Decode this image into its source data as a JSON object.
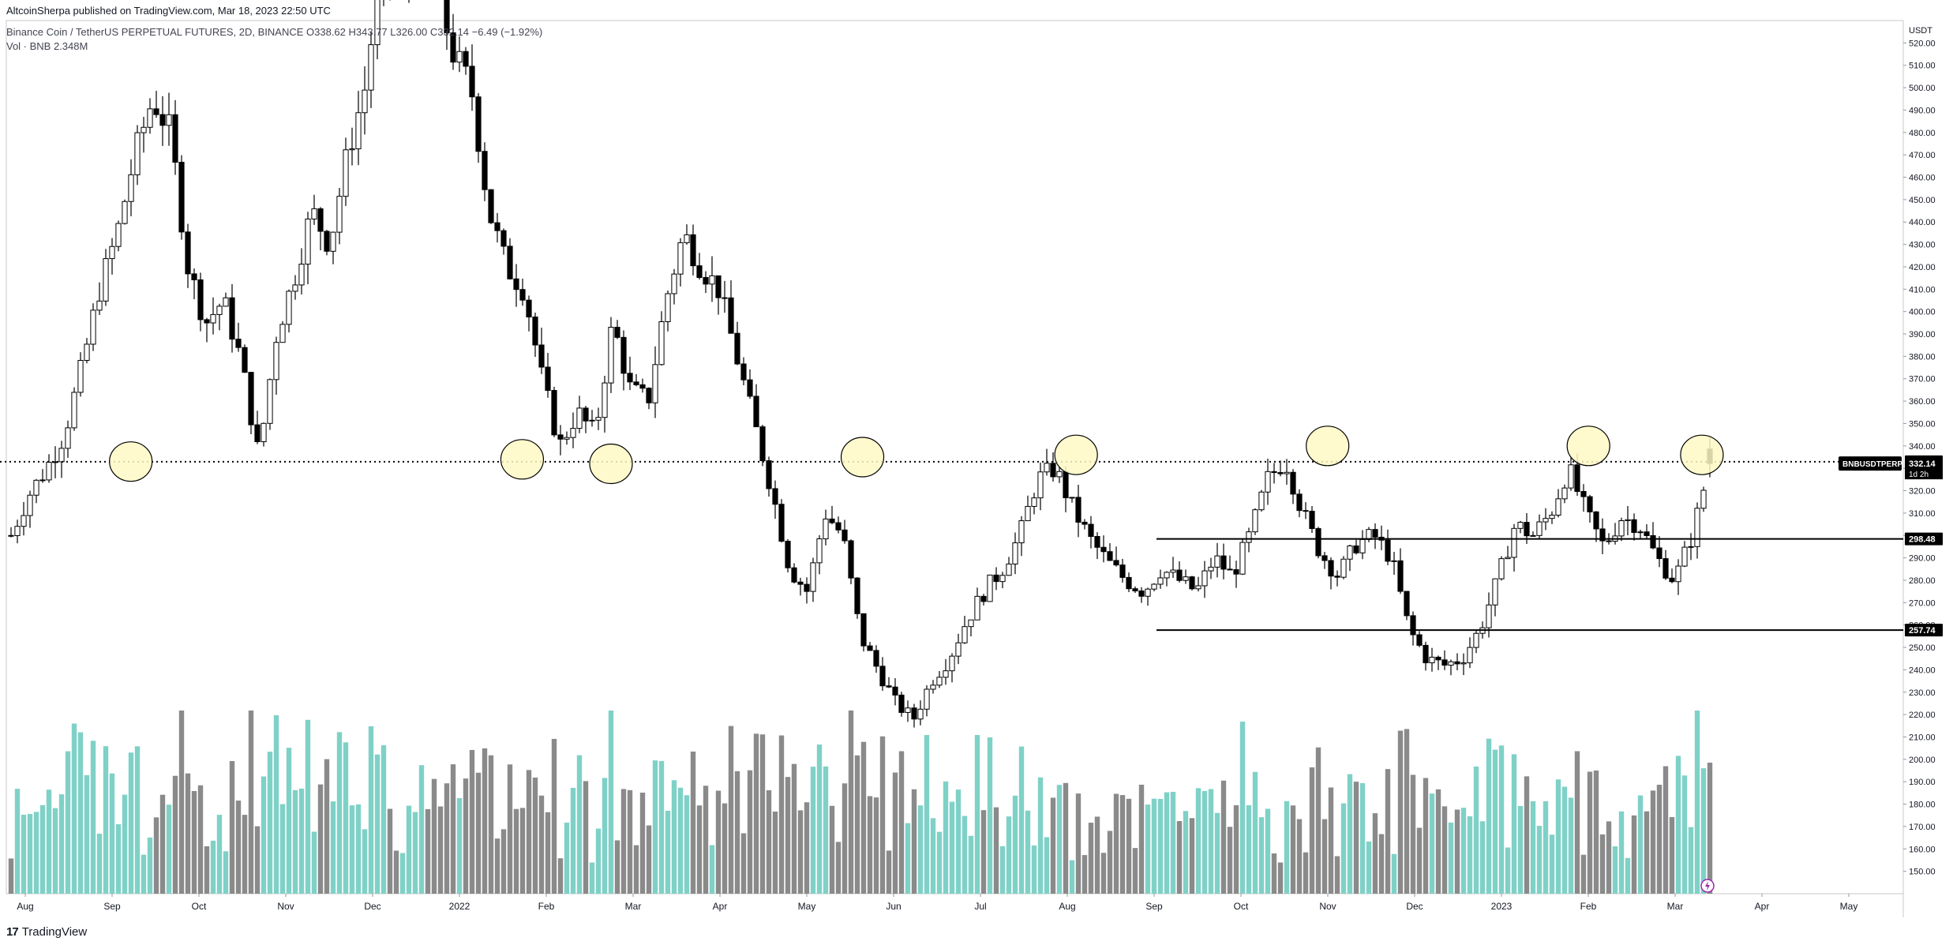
{
  "header": {
    "publisher": "AltcoinSherpa published on TradingView.com, Mar 18, 2023 22:50 UTC",
    "symbol_line": "Binance Coin / TetherUS PERPETUAL FUTURES, 2D, BINANCE  O338.62  H343.77  L326.00  C332.14  −6.49 (−1.92%)",
    "volume_line": "Vol · BNB  2.348M"
  },
  "brand": {
    "mark": "17",
    "name": "TradingView"
  },
  "colors": {
    "up_candle": "#ffffff",
    "down_candle": "#000000",
    "wick": "#000000",
    "vol_up": "#7fd1c7",
    "vol_down": "#8a8a8a",
    "highlight": "#fff9c4",
    "line": "#000000"
  },
  "chart_data": {
    "type": "candlestick",
    "timeframe": "2D",
    "price_axis": {
      "unit": "USDT",
      "min": 140,
      "max": 530,
      "ticks": [
        520,
        510,
        500,
        490,
        480,
        470,
        460,
        450,
        440,
        430,
        420,
        410,
        400,
        390,
        380,
        370,
        360,
        350,
        340,
        330,
        320,
        310,
        300,
        290,
        280,
        270,
        260,
        250,
        240,
        230,
        220,
        210,
        200,
        190,
        180,
        170,
        160,
        150
      ]
    },
    "time_axis": {
      "labels": [
        "Aug",
        "Sep",
        "Oct",
        "Nov",
        "Dec",
        "2022",
        "Feb",
        "Mar",
        "Apr",
        "May",
        "Jun",
        "Jul",
        "Aug",
        "Sep",
        "Oct",
        "Nov",
        "Dec",
        "2023",
        "Feb",
        "Mar",
        "Apr",
        "May"
      ]
    },
    "price_path": [
      300,
      318,
      330,
      345,
      375,
      410,
      435,
      470,
      495,
      480,
      420,
      395,
      405,
      378,
      335,
      390,
      415,
      445,
      430,
      470,
      500,
      560,
      540,
      560,
      545,
      515,
      500,
      445,
      420,
      410,
      370,
      340,
      355,
      345,
      395,
      365,
      360,
      405,
      435,
      420,
      410,
      380,
      350,
      320,
      285,
      275,
      310,
      300,
      255,
      240,
      225,
      218,
      235,
      245,
      262,
      275,
      285,
      300,
      325,
      330,
      312,
      298,
      288,
      280,
      275,
      285,
      280,
      275,
      290,
      282,
      300,
      325,
      334,
      310,
      292,
      282,
      296,
      300,
      290,
      258,
      245,
      242,
      245,
      258,
      280,
      305,
      300,
      310,
      330,
      310,
      295,
      308,
      305,
      290,
      280,
      300,
      332
    ],
    "candle_count": 270,
    "volume_range": [
      0,
      9000000
    ],
    "levels": [
      {
        "name": "dotted-resistance",
        "price": 332.95,
        "style": "dotted",
        "label": "332.95"
      },
      {
        "name": "range-top",
        "price": 298.48,
        "style": "solid",
        "label": "298.48"
      },
      {
        "name": "range-bottom",
        "price": 257.74,
        "style": "solid",
        "label": "257.74"
      }
    ],
    "current": {
      "symbol": "BNBUSDTPERP",
      "price": "332.14",
      "countdown": "1d 2h"
    },
    "highlight_circles": [
      {
        "t": 0.065,
        "price": 333
      },
      {
        "t": 0.272,
        "price": 334
      },
      {
        "t": 0.319,
        "price": 332
      },
      {
        "t": 0.452,
        "price": 335
      },
      {
        "t": 0.565,
        "price": 336
      },
      {
        "t": 0.698,
        "price": 340
      },
      {
        "t": 0.836,
        "price": 340
      },
      {
        "t": 0.896,
        "price": 336
      }
    ]
  }
}
